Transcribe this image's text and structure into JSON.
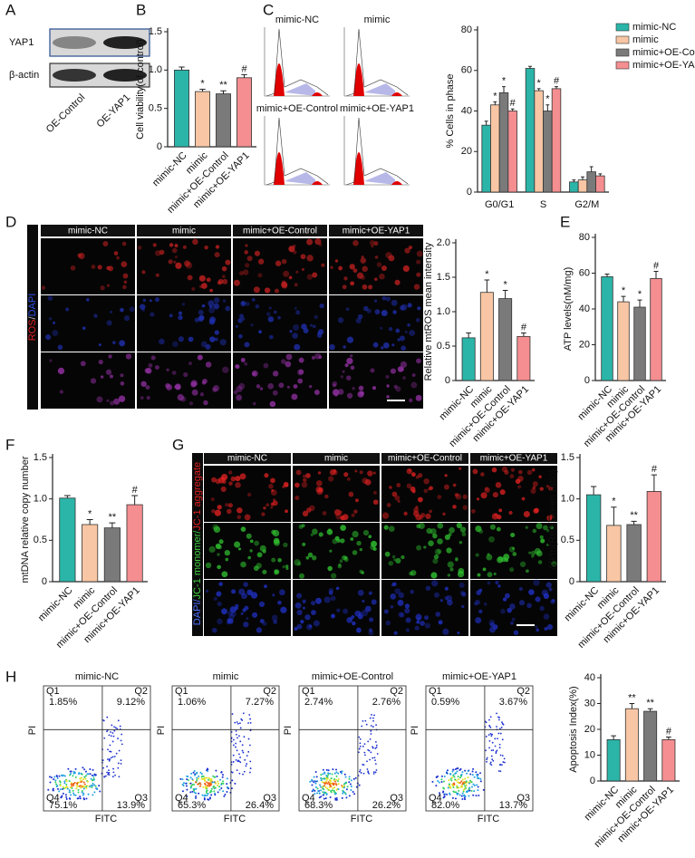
{
  "panel_letters": [
    "A",
    "B",
    "C",
    "D",
    "E",
    "F",
    "G",
    "H"
  ],
  "blot": {
    "rows": [
      "YAP1",
      "β-actin"
    ],
    "lanes": [
      "OE-Control",
      "OE-YAP1"
    ]
  },
  "cell_cycle_histograms": {
    "labels": [
      "mimic-NC",
      "mimic",
      "mimic+OE-Control",
      "mimic+OE-YAP1"
    ]
  },
  "ros_images": {
    "columns": [
      "mimic-NC",
      "mimic",
      "mimic+OE-Control",
      "mimic+OE-YAP1"
    ],
    "row_label": [
      "ROS",
      "/",
      "DAPI"
    ]
  },
  "jc1_images": {
    "columns": [
      "mimic-NC",
      "mimic",
      "mimic+OE-Control",
      "mimic+OE-YAP1"
    ],
    "row_label": [
      "DAPI/",
      "JC-1 monomer/",
      "JC-1 aggregate"
    ]
  },
  "flow_cytometry": {
    "x_label": "FITC",
    "y_label": "PI",
    "quadrant_names": [
      "Q1",
      "Q2",
      "Q3",
      "Q4"
    ],
    "panels": [
      {
        "title": "mimic-NC",
        "quadrants": [
          "1.85%",
          "9.12%",
          "13.9%",
          "75.1%"
        ]
      },
      {
        "title": "mimic",
        "quadrants": [
          "1.06%",
          "7.27%",
          "26.4%",
          "65.3%"
        ]
      },
      {
        "title": "mimic+OE-Control",
        "quadrants": [
          "2.74%",
          "2.76%",
          "26.2%",
          "68.3%"
        ]
      },
      {
        "title": "mimic+OE-YAP1",
        "quadrants": [
          "0.59%",
          "3.67%",
          "13.7%",
          "82.0%"
        ]
      }
    ]
  },
  "chart_data": [
    {
      "type": "bar",
      "y_label": "Cell viability(of control)",
      "categories": [
        "mimic-NC",
        "mimic",
        "mimic+OE-Control",
        "mimic+OE-YAP1"
      ],
      "values": [
        1.0,
        0.72,
        0.69,
        0.9
      ],
      "errors": [
        0.04,
        0.03,
        0.04,
        0.04
      ],
      "significance": [
        null,
        "*",
        "**",
        "#"
      ],
      "colors": [
        "#2bb5a8",
        "#f8c6a4",
        "#7a7a7a",
        "#f48e90"
      ],
      "ylim": [
        0,
        1.5
      ],
      "yticks": [
        0,
        0.5,
        {
          "value": 1,
          "label": "1.0"
        },
        1.5
      ]
    },
    {
      "type": "grouped_bar",
      "y_label": "% Cells in phase",
      "categories": [
        "G0/G1",
        "S",
        "G2/M"
      ],
      "series": [
        {
          "name": "mimic-NC",
          "color": "#2bb5a8",
          "values": [
            33,
            61,
            5
          ],
          "errors": [
            2,
            1,
            1
          ],
          "significance": [
            null,
            null,
            null
          ]
        },
        {
          "name": "mimic",
          "color": "#f8c6a4",
          "values": [
            43,
            50,
            6
          ],
          "errors": [
            1.5,
            1,
            1.5
          ],
          "significance": [
            "*",
            "*",
            null
          ]
        },
        {
          "name": "mimic+OE-Control",
          "color": "#7a7a7a",
          "values": [
            49,
            40,
            10
          ],
          "errors": [
            3,
            3,
            2.5
          ],
          "significance": [
            "*",
            "*",
            null
          ]
        },
        {
          "name": "mimic+OE-YAP1",
          "color": "#f48e90",
          "values": [
            40,
            51,
            8
          ],
          "errors": [
            1,
            1,
            1
          ],
          "significance": [
            "#",
            "#",
            null
          ]
        }
      ],
      "ylim": [
        0,
        80
      ],
      "yticks": [
        0,
        20,
        40,
        60,
        80
      ],
      "legend": "top-right"
    },
    {
      "type": "bar",
      "y_label": "Relative mtROS mean intensity",
      "categories": [
        "mimic-NC",
        "mimic",
        "mimic+OE-Control",
        "mimic+OE-YAP1"
      ],
      "values": [
        0.62,
        1.28,
        1.19,
        0.64
      ],
      "errors": [
        0.07,
        0.18,
        0.12,
        0.05
      ],
      "significance": [
        null,
        "*",
        "*",
        "#"
      ],
      "colors": [
        "#2bb5a8",
        "#f8c6a4",
        "#7a7a7a",
        "#f48e90"
      ],
      "ylim": [
        0,
        2
      ],
      "yticks": [
        0,
        0.5,
        {
          "value": 1,
          "label": "1.0"
        },
        1.5,
        {
          "value": 2,
          "label": "2.0"
        }
      ]
    },
    {
      "type": "bar",
      "y_label": "ATP levels(nM/mg)",
      "categories": [
        "mimic-NC",
        "mimic",
        "mimic+OE-Control",
        "mimic+OE-YAP1"
      ],
      "values": [
        58,
        44,
        41,
        57
      ],
      "errors": [
        1.5,
        3,
        4,
        4
      ],
      "significance": [
        null,
        "*",
        "*",
        "#"
      ],
      "colors": [
        "#2bb5a8",
        "#f8c6a4",
        "#7a7a7a",
        "#f48e90"
      ],
      "ylim": [
        0,
        80
      ],
      "yticks": [
        0,
        20,
        40,
        60,
        80
      ]
    },
    {
      "type": "bar",
      "y_label": "mtDNA  relative copy number",
      "categories": [
        "mimic-NC",
        "mimic",
        "mimic+OE-Control",
        "mimic+OE-YAP1"
      ],
      "values": [
        1.01,
        0.69,
        0.65,
        0.93
      ],
      "errors": [
        0.03,
        0.06,
        0.06,
        0.11
      ],
      "significance": [
        null,
        "*",
        "**",
        "#"
      ],
      "colors": [
        "#2bb5a8",
        "#f8c6a4",
        "#7a7a7a",
        "#f48e90"
      ],
      "ylim": [
        0,
        1.5
      ],
      "yticks": [
        0,
        0.5,
        {
          "value": 1,
          "label": "1.0"
        },
        1.5
      ]
    },
    {
      "type": "bar",
      "y_label": "ΔΨm(Red/Green ratio)",
      "categories": [
        "mimic-NC",
        "mimic",
        "mimic+OE-Control",
        "mimic+OE-YAP1"
      ],
      "values": [
        1.05,
        0.68,
        0.69,
        1.09
      ],
      "errors": [
        0.1,
        0.22,
        0.04,
        0.2
      ],
      "significance": [
        null,
        "*",
        "**",
        "#"
      ],
      "colors": [
        "#2bb5a8",
        "#f8c6a4",
        "#7a7a7a",
        "#f48e90"
      ],
      "ylim": [
        0,
        1.5
      ],
      "yticks": [
        0,
        0.5,
        {
          "value": 1,
          "label": "1.0"
        },
        1.5
      ]
    },
    {
      "type": "bar",
      "y_label": "Apoptosis Index(%)",
      "categories": [
        "mimic-NC",
        "mimic",
        "mimic+OE-Control",
        "mimic+OE-YAP1"
      ],
      "values": [
        16,
        28,
        27,
        16
      ],
      "errors": [
        1.5,
        2,
        1,
        1
      ],
      "significance": [
        null,
        "**",
        "**",
        "#"
      ],
      "colors": [
        "#2bb5a8",
        "#f8c6a4",
        "#7a7a7a",
        "#f48e90"
      ],
      "ylim": [
        0,
        40
      ],
      "yticks": [
        0,
        10,
        20,
        30,
        40
      ]
    }
  ]
}
